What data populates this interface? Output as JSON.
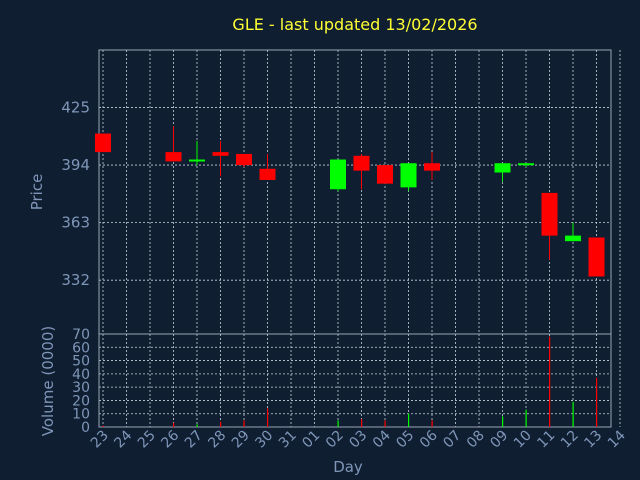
{
  "chart_data": {
    "type": "candlestick",
    "title": "GLE - last updated 13/02/2026",
    "xlabel": "Day",
    "ylabel_price": "Price",
    "ylabel_volume": "Volume (0000)",
    "x_ticks": [
      "23",
      "24",
      "25",
      "26",
      "27",
      "28",
      "29",
      "30",
      "31",
      "01",
      "02",
      "03",
      "04",
      "05",
      "06",
      "07",
      "08",
      "09",
      "10",
      "11",
      "12",
      "13",
      "14"
    ],
    "price_yticks": [
      332,
      363,
      394,
      425
    ],
    "price_ylim": [
      303,
      456
    ],
    "volume_yticks": [
      0,
      10,
      20,
      30,
      40,
      50,
      60,
      70
    ],
    "volume_ylim": [
      0,
      70
    ],
    "grid": true,
    "colors": {
      "up": "#00ff00",
      "down": "#ff0000",
      "title": "#ffff33",
      "axis_text": "#7f96b8",
      "background": "#0f1e31"
    },
    "candles": [
      {
        "x": "23",
        "open": 411,
        "high": 411,
        "low": 401,
        "close": 401,
        "volume": 1
      },
      {
        "x": "26",
        "open": 401,
        "high": 415,
        "low": 396,
        "close": 396,
        "volume": 3
      },
      {
        "x": "27",
        "open": 396,
        "high": 407,
        "low": 394,
        "close": 397,
        "volume": 2
      },
      {
        "x": "28",
        "open": 401,
        "high": 407,
        "low": 388,
        "close": 399,
        "volume": 4
      },
      {
        "x": "29",
        "open": 400,
        "high": 400,
        "low": 393,
        "close": 394,
        "volume": 5
      },
      {
        "x": "30",
        "open": 392,
        "high": 400,
        "low": 386,
        "close": 386,
        "volume": 14
      },
      {
        "x": "02",
        "open": 381,
        "high": 397,
        "low": 380,
        "close": 397,
        "volume": 5
      },
      {
        "x": "03",
        "open": 399,
        "high": 400,
        "low": 381,
        "close": 391,
        "volume": 6
      },
      {
        "x": "04",
        "open": 394,
        "high": 394,
        "low": 384,
        "close": 384,
        "volume": 5
      },
      {
        "x": "05",
        "open": 382,
        "high": 395,
        "low": 380,
        "close": 395,
        "volume": 10
      },
      {
        "x": "06",
        "open": 395,
        "high": 401,
        "low": 386,
        "close": 391,
        "volume": 5
      },
      {
        "x": "09",
        "open": 390,
        "high": 395,
        "low": 385,
        "close": 395,
        "volume": 8
      },
      {
        "x": "10",
        "open": 394,
        "high": 395,
        "low": 393,
        "close": 395,
        "volume": 13
      },
      {
        "x": "11",
        "open": 379,
        "high": 379,
        "low": 343,
        "close": 356,
        "volume": 68
      },
      {
        "x": "12",
        "open": 353,
        "high": 363,
        "low": 353,
        "close": 356,
        "volume": 19
      },
      {
        "x": "13",
        "open": 355,
        "high": 355,
        "low": 334,
        "close": 334,
        "volume": 37
      }
    ]
  }
}
